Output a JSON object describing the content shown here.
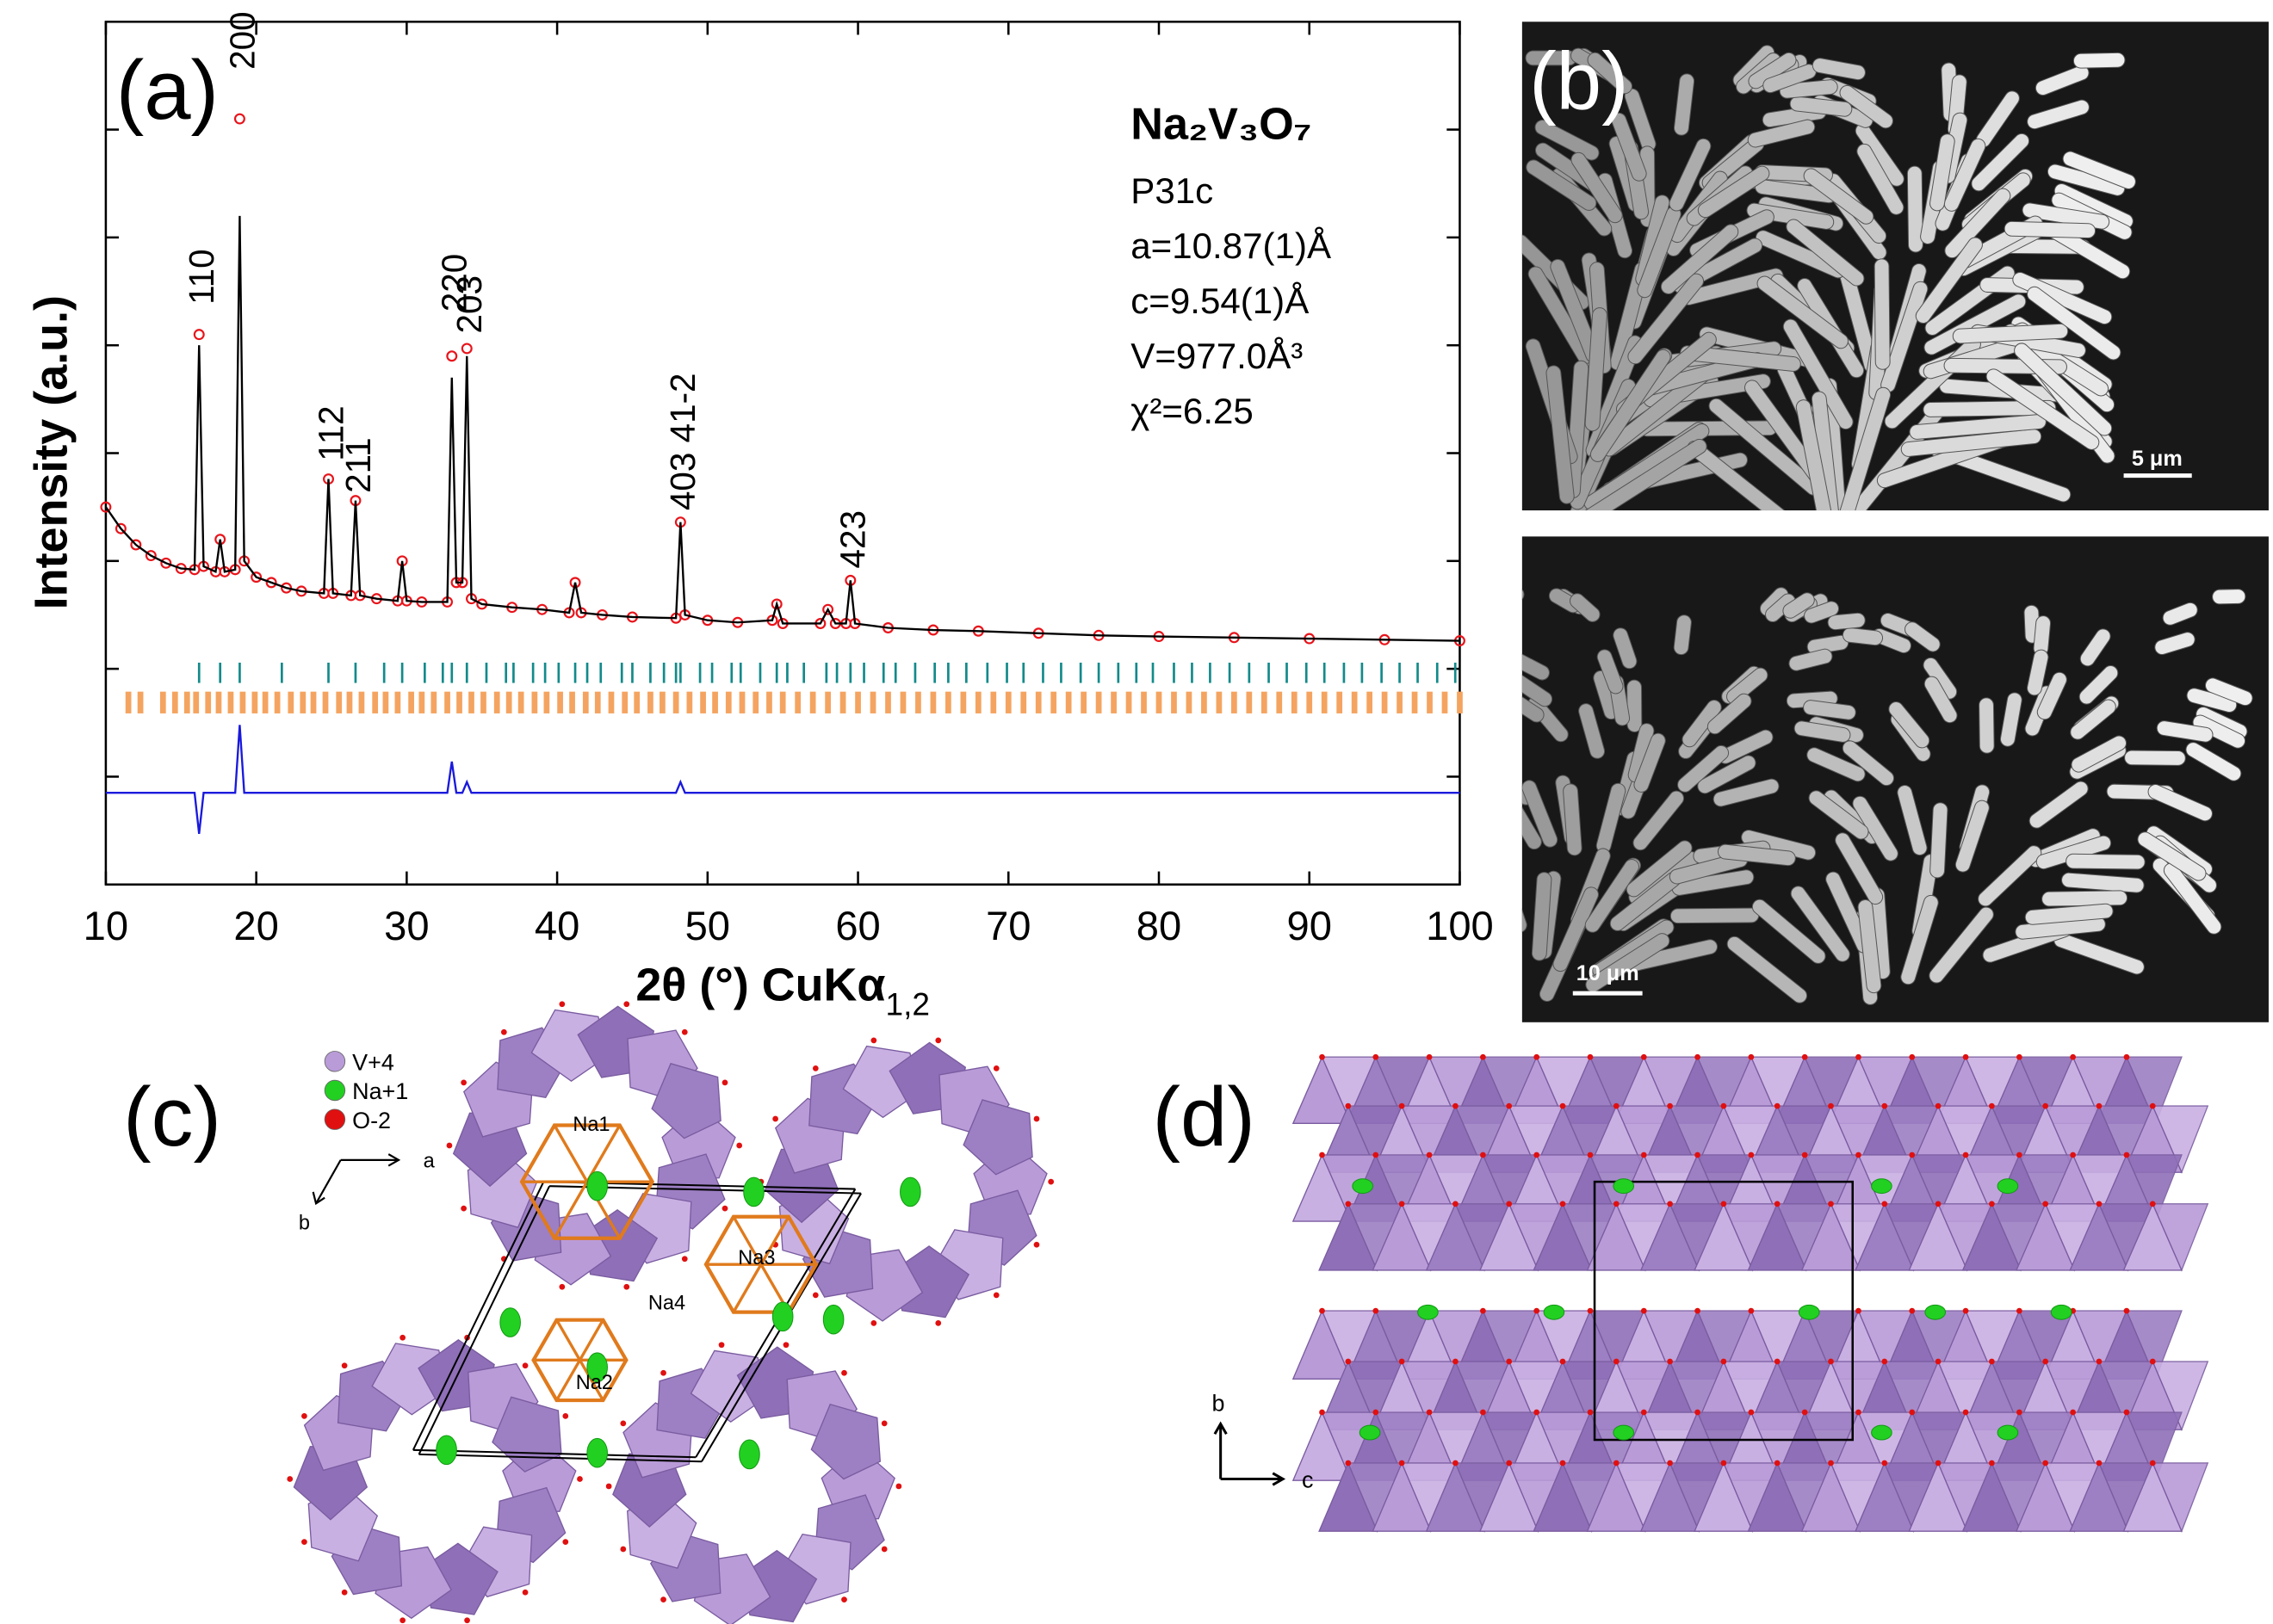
{
  "chart_data": {
    "type": "line",
    "panel_label": "(a)",
    "ylabel": "Intensity (a.u.)",
    "xlabel": "2θ (°) CuKα",
    "xlabel_sub": "1,2",
    "info": {
      "formula": "Na₂V₃O₇",
      "lines": [
        "P31c",
        "a=10.87(1)Å",
        "c=9.54(1)Å",
        "V=977.0Å³",
        "χ²=6.25"
      ]
    },
    "xlim": [
      10,
      100
    ],
    "xticks": [
      10,
      20,
      30,
      40,
      50,
      60,
      70,
      80,
      90,
      100
    ],
    "ylim": [
      0,
      8
    ],
    "yticks": [
      1,
      2,
      3,
      4,
      5,
      6,
      7
    ],
    "x": [
      10,
      11,
      12,
      13,
      14,
      15,
      15.9,
      16.2,
      16.5,
      17.3,
      17.6,
      17.9,
      18.6,
      18.9,
      19.2,
      20,
      21,
      22,
      23,
      24.5,
      24.8,
      25.1,
      26.3,
      26.6,
      26.9,
      28,
      29.4,
      29.7,
      30,
      31,
      32.7,
      33,
      33.3,
      33.7,
      34,
      34.3,
      35,
      37,
      39,
      40.8,
      41.2,
      41.6,
      43,
      45,
      47.9,
      48.2,
      48.5,
      50,
      52,
      54.3,
      54.6,
      55,
      57.5,
      58,
      58.5,
      59.2,
      59.5,
      59.8,
      62,
      65,
      68,
      72,
      76,
      80,
      85,
      90,
      95,
      100
    ],
    "series": [
      {
        "color": "#e8141b",
        "values": [
          3.5,
          3.3,
          3.15,
          3.05,
          2.98,
          2.93,
          2.92,
          5.1,
          2.95,
          2.9,
          3.2,
          2.9,
          2.92,
          7.1,
          3.0,
          2.85,
          2.8,
          2.75,
          2.72,
          2.7,
          3.76,
          2.7,
          2.68,
          3.56,
          2.68,
          2.65,
          2.63,
          3.0,
          2.63,
          2.62,
          2.62,
          4.9,
          2.8,
          2.8,
          4.97,
          2.65,
          2.6,
          2.57,
          2.55,
          2.52,
          2.8,
          2.52,
          2.5,
          2.48,
          2.47,
          3.36,
          2.5,
          2.45,
          2.43,
          2.45,
          2.6,
          2.42,
          2.42,
          2.55,
          2.42,
          2.42,
          2.82,
          2.42,
          2.38,
          2.36,
          2.35,
          2.33,
          2.31,
          2.3,
          2.29,
          2.28,
          2.27,
          2.26
        ]
      },
      {
        "color": "#000000",
        "values": [
          3.5,
          3.3,
          3.15,
          3.05,
          2.98,
          2.93,
          2.92,
          5.0,
          2.95,
          2.9,
          3.2,
          2.9,
          2.92,
          6.2,
          3.0,
          2.85,
          2.8,
          2.75,
          2.72,
          2.7,
          3.76,
          2.7,
          2.68,
          3.56,
          2.68,
          2.65,
          2.63,
          3.0,
          2.63,
          2.62,
          2.62,
          4.7,
          2.8,
          2.8,
          4.9,
          2.65,
          2.6,
          2.57,
          2.55,
          2.52,
          2.8,
          2.52,
          2.5,
          2.48,
          2.47,
          3.36,
          2.5,
          2.45,
          2.43,
          2.45,
          2.6,
          2.42,
          2.42,
          2.55,
          2.42,
          2.42,
          2.82,
          2.42,
          2.38,
          2.36,
          2.35,
          2.33,
          2.31,
          2.3,
          2.29,
          2.28,
          2.27,
          2.26
        ]
      },
      {
        "color": "#1a1adc",
        "values": [
          0.85,
          0.85,
          0.85,
          0.85,
          0.85,
          0.85,
          0.85,
          0.47,
          0.85,
          0.85,
          0.85,
          0.85,
          0.85,
          1.48,
          0.85,
          0.85,
          0.85,
          0.85,
          0.85,
          0.85,
          0.85,
          0.85,
          0.85,
          0.85,
          0.85,
          0.85,
          0.85,
          0.85,
          0.85,
          0.85,
          0.85,
          1.14,
          0.85,
          0.85,
          0.95,
          0.85,
          0.85,
          0.85,
          0.85,
          0.85,
          0.85,
          0.85,
          0.85,
          0.85,
          0.85,
          0.95,
          0.85,
          0.85,
          0.85,
          0.85,
          0.85,
          0.85,
          0.85,
          0.85,
          0.85,
          0.85,
          0.85,
          0.85,
          0.85,
          0.85,
          0.85,
          0.85,
          0.85,
          0.85,
          0.85,
          0.85,
          0.85,
          0.85
        ]
      }
    ],
    "bragg": [
      {
        "color": "#138a8a",
        "positions": [
          16.2,
          17.6,
          18.9,
          21.7,
          24.8,
          26.6,
          28.5,
          29.7,
          31.2,
          32.4,
          33.0,
          34.0,
          35.3,
          36.6,
          37.1,
          38.4,
          39.2,
          40.1,
          41.2,
          42.0,
          42.9,
          44.3,
          45.0,
          46.2,
          47.1,
          47.9,
          48.2,
          49.5,
          50.3,
          51.6,
          52.2,
          53.5,
          54.6,
          55.3,
          56.4,
          57.9,
          58.6,
          59.5,
          60.4,
          61.7,
          62.5,
          63.8,
          65.1,
          66.0,
          67.2,
          68.6,
          69.9,
          71.0,
          72.3,
          73.5,
          74.8,
          76.0,
          77.3,
          78.5,
          79.6,
          81.0,
          82.2,
          83.4,
          84.7,
          86.0,
          87.3,
          88.5,
          89.8,
          91.0,
          92.3,
          93.5,
          94.8,
          96.0,
          97.2,
          98.5,
          99.7
        ]
      },
      {
        "color": "#f4a460",
        "positions": [
          11.5,
          12.3,
          13.8,
          14.6,
          15.4,
          16.0,
          16.8,
          17.5,
          18.3,
          19.1,
          19.9,
          20.6,
          21.4,
          22.3,
          23.1,
          23.8,
          24.6,
          25.5,
          26.2,
          27.0,
          27.9,
          28.6,
          29.4,
          30.3,
          31.0,
          31.8,
          32.7,
          33.5,
          34.3,
          35.1,
          36.0,
          36.8,
          37.6,
          38.5,
          39.3,
          40.2,
          41.0,
          41.9,
          42.7,
          43.6,
          44.5,
          45.3,
          46.2,
          47.0,
          47.9,
          48.8,
          49.7,
          50.5,
          51.4,
          52.3,
          53.2,
          54.1,
          55.0,
          56.0,
          57.0,
          58.0,
          59.0,
          60.0,
          61.0,
          62.0,
          63.0,
          64.0,
          65.0,
          66.0,
          67.0,
          68.0,
          69.0,
          70.0,
          71.0,
          72.0,
          73.0,
          74.0,
          75.0,
          76.0,
          77.0,
          78.0,
          79.0,
          80.0,
          81.0,
          82.0,
          83.0,
          84.0,
          85.0,
          86.0,
          87.0,
          88.0,
          89.0,
          90.0,
          91.0,
          92.0,
          93.0,
          94.0,
          95.0,
          96.0,
          97.0,
          98.0,
          99.0,
          100.0
        ]
      }
    ],
    "annotations": [
      {
        "text": "110",
        "x": 16.2
      },
      {
        "text": "200",
        "x": 18.9
      },
      {
        "text": "112",
        "x": 24.8
      },
      {
        "text": "211",
        "x": 26.6
      },
      {
        "text": "220",
        "x": 33.0
      },
      {
        "text": "203",
        "x": 34.0
      },
      {
        "text": "403 41-2",
        "x": 48.2
      },
      {
        "text": "423",
        "x": 59.5
      }
    ]
  },
  "panels": {
    "b": {
      "label": "(b)",
      "scale_bars": [
        "5 μm",
        "10 μm"
      ]
    },
    "c": {
      "label": "(c)",
      "legend": [
        "V+4",
        "Na+1",
        "O-2"
      ],
      "sites": [
        "Na1",
        "Na2",
        "Na3",
        "Na4"
      ],
      "axes": [
        "a",
        "b"
      ]
    },
    "d": {
      "label": "(d)",
      "axes": [
        "b",
        "c"
      ]
    }
  }
}
